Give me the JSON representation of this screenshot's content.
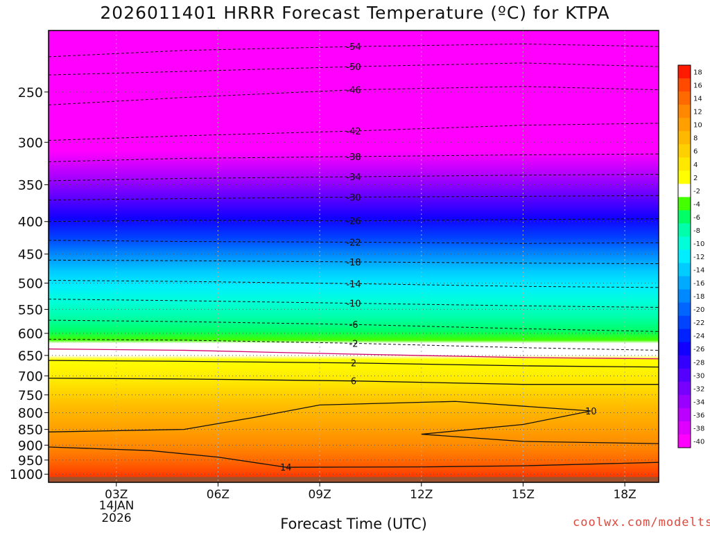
{
  "chart_data": {
    "type": "heatmap",
    "title": "2026011401 HRRR Forecast Temperature (ºC) for KTPA",
    "xlabel": "Forecast Time (UTC)",
    "ylabel": "",
    "credit": "coolwx.com/modelts",
    "date_line1": "14JAN",
    "date_line2": "2026",
    "x_ticks": [
      {
        "label": "03Z",
        "hour": 3
      },
      {
        "label": "06Z",
        "hour": 6
      },
      {
        "label": "09Z",
        "hour": 9
      },
      {
        "label": "12Z",
        "hour": 12
      },
      {
        "label": "15Z",
        "hour": 15
      },
      {
        "label": "18Z",
        "hour": 18
      }
    ],
    "x_range_hours": [
      1,
      19
    ],
    "y_axis": "pressure (hPa), inverted",
    "y_ticks": [
      250,
      300,
      350,
      400,
      450,
      500,
      550,
      600,
      650,
      700,
      750,
      800,
      850,
      900,
      950,
      1000
    ],
    "y_range": [
      1030,
      200
    ],
    "colorbar": {
      "labels": [
        "18",
        "16",
        "14",
        "12",
        "10",
        "8",
        "6",
        "4",
        "2",
        "-2",
        "-4",
        "-6",
        "-8",
        "-10",
        "-12",
        "-14",
        "-16",
        "-18",
        "-20",
        "-22",
        "-24",
        "-26",
        "-28",
        "-30",
        "-32",
        "-34",
        "-36",
        "-38",
        "-40"
      ],
      "colors": [
        "#ff1a00",
        "#ff4a00",
        "#ff6a00",
        "#ff8800",
        "#ffa000",
        "#ffb800",
        "#ffd000",
        "#ffe800",
        "#ffff00",
        "#ffffff",
        "#44ff00",
        "#00ff66",
        "#00ffaa",
        "#00ffd8",
        "#00eeff",
        "#00ccff",
        "#00aaff",
        "#0088ff",
        "#0066ff",
        "#0044ff",
        "#0022ff",
        "#1100ff",
        "#3300ff",
        "#5500ff",
        "#7700ff",
        "#9900ff",
        "#bb00ff",
        "#dd00ff",
        "#ff00ff"
      ]
    },
    "contours": [
      {
        "label": "-54",
        "points": [
          [
            1,
            220
          ],
          [
            5,
            215
          ],
          [
            10,
            212
          ],
          [
            15,
            210
          ],
          [
            19,
            212
          ]
        ]
      },
      {
        "label": "-50",
        "points": [
          [
            1,
            235
          ],
          [
            5,
            232
          ],
          [
            10,
            228
          ],
          [
            15,
            225
          ],
          [
            19,
            228
          ]
        ]
      },
      {
        "label": "-46",
        "points": [
          [
            1,
            262
          ],
          [
            5,
            255
          ],
          [
            10,
            248
          ],
          [
            15,
            245
          ],
          [
            19,
            248
          ]
        ]
      },
      {
        "label": "-42",
        "points": [
          [
            1,
            298
          ],
          [
            5,
            293
          ],
          [
            10,
            288
          ],
          [
            15,
            282
          ],
          [
            19,
            280
          ]
        ]
      },
      {
        "label": "-38",
        "points": [
          [
            1,
            322
          ],
          [
            5,
            318
          ],
          [
            10,
            316
          ],
          [
            15,
            314
          ],
          [
            19,
            313
          ]
        ]
      },
      {
        "label": "-34",
        "points": [
          [
            1,
            345
          ],
          [
            5,
            342
          ],
          [
            10,
            340
          ],
          [
            15,
            338
          ],
          [
            19,
            337
          ]
        ]
      },
      {
        "label": "-30",
        "points": [
          [
            1,
            370
          ],
          [
            5,
            368
          ],
          [
            10,
            366
          ],
          [
            15,
            365
          ],
          [
            19,
            364
          ]
        ]
      },
      {
        "label": "-26",
        "points": [
          [
            1,
            400
          ],
          [
            5,
            398
          ],
          [
            10,
            399
          ],
          [
            15,
            397
          ],
          [
            19,
            396
          ]
        ]
      },
      {
        "label": "-22",
        "points": [
          [
            1,
            428
          ],
          [
            5,
            430
          ],
          [
            10,
            431
          ],
          [
            15,
            433
          ],
          [
            19,
            432
          ]
        ]
      },
      {
        "label": "-18",
        "points": [
          [
            1,
            460
          ],
          [
            5,
            461
          ],
          [
            10,
            463
          ],
          [
            15,
            465
          ],
          [
            19,
            466
          ]
        ]
      },
      {
        "label": "-14",
        "points": [
          [
            1,
            495
          ],
          [
            5,
            497
          ],
          [
            10,
            501
          ],
          [
            15,
            506
          ],
          [
            19,
            508
          ]
        ]
      },
      {
        "label": "-10",
        "points": [
          [
            1,
            530
          ],
          [
            5,
            533
          ],
          [
            10,
            538
          ],
          [
            15,
            543
          ],
          [
            19,
            546
          ]
        ]
      },
      {
        "label": "-6",
        "points": [
          [
            1,
            572
          ],
          [
            5,
            575
          ],
          [
            10,
            581
          ],
          [
            15,
            590
          ],
          [
            19,
            596
          ]
        ]
      },
      {
        "label": "-2",
        "points": [
          [
            1,
            613
          ],
          [
            5,
            615
          ],
          [
            10,
            622
          ],
          [
            15,
            632
          ],
          [
            19,
            638
          ]
        ]
      },
      {
        "label": "2",
        "points": [
          [
            1,
            662
          ],
          [
            5,
            664
          ],
          [
            10,
            668
          ],
          [
            15,
            675
          ],
          [
            19,
            678
          ]
        ]
      },
      {
        "label": "6",
        "points": [
          [
            1,
            706
          ],
          [
            5,
            708
          ],
          [
            10,
            713
          ],
          [
            15,
            722
          ],
          [
            19,
            722
          ]
        ]
      },
      {
        "label": "10",
        "points": [
          [
            1,
            858
          ],
          [
            5,
            850
          ],
          [
            7,
            815
          ],
          [
            9,
            778
          ],
          [
            13,
            768
          ],
          [
            17,
            795
          ],
          [
            15,
            835
          ],
          [
            12,
            865
          ],
          [
            15,
            888
          ],
          [
            19,
            895
          ]
        ]
      },
      {
        "label": "14",
        "points": [
          [
            1,
            906
          ],
          [
            4,
            918
          ],
          [
            6,
            940
          ],
          [
            8,
            975
          ],
          [
            12,
            974
          ],
          [
            15,
            970
          ],
          [
            19,
            958
          ]
        ]
      }
    ],
    "zero_isotherm": {
      "points": [
        [
          1,
          635
        ],
        [
          5,
          638
        ],
        [
          10,
          647
        ],
        [
          15,
          655
        ],
        [
          19,
          658
        ]
      ]
    }
  }
}
